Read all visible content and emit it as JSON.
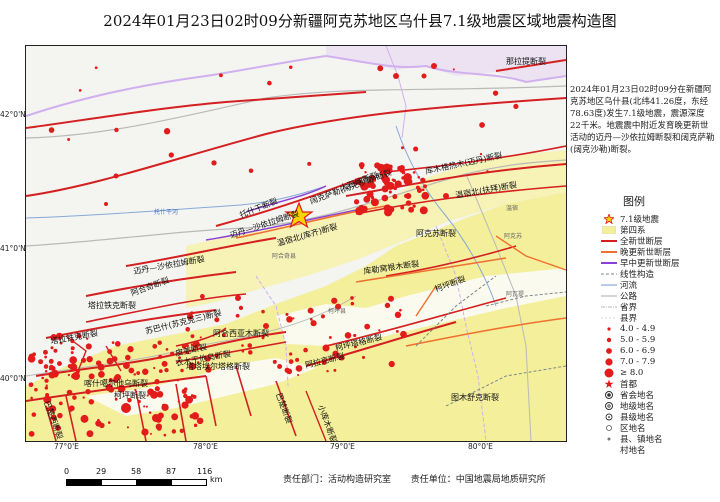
{
  "title": "2024年01月23日02时09分新疆阿克苏地区乌什县7.1级地震区域地震构造图",
  "map": {
    "colors": {
      "quaternary": "#f3ef9a",
      "holocene_fault": "#d42020",
      "late_pleistocene_fault": "#f07030",
      "early_mid_pleistocene_fault": "#8a3fd6",
      "boundary": "#d0b0ee",
      "highway": "#b9b9b9",
      "river": "#86a9d9",
      "epicenter": "#f5d400",
      "event": "#e21b1b"
    },
    "lat_ticks": [
      "42°0'N",
      "41°0'N",
      "40°0'N"
    ],
    "lon_ticks": [
      "77°0'E",
      "78°0'E",
      "79°0'E",
      "80°0'E"
    ],
    "fault_labels": [
      "那拉提断裂",
      "库木格热木(迈丹)断裂",
      "温宿北(扶拜)断裂",
      "阔克萨勒(阔克沙勒)断裂",
      "大石峡断裂",
      "托什干断裂",
      "迈丹—沙依拉姆断裂",
      "温宿北(库齐)断裂",
      "迈丹—沙依拉姆断裂",
      "阿合奇断裂",
      "塔拉铁克断裂",
      "库勒窝根木断裂",
      "柯坪断裂",
      "苏巴什(苏克克三)断裂",
      "塔拉铁克断裂",
      "皮羌断裂",
      "阿合西亚木断裂",
      "阿克苏断裂",
      "衣木干他乌断裂",
      "塔塔埃尔塔格断裂",
      "阿拉克断裂",
      "柯坪塔格断裂",
      "巴楚断裂",
      "小库木断裂",
      "图木舒克断裂",
      "喀什噶尔他乌断裂",
      "柯坪断裂",
      "巴楚西断裂"
    ],
    "place_labels": [
      "温宿",
      "阿克苏",
      "阿瓦提",
      "柯坪县",
      "阿合奇县"
    ],
    "river_label": "托什干河"
  },
  "side_note": "2024年01月23日02时09分在新疆阿克苏地区乌什县(北纬41.26度，东经78.63度)发生7.1级地震，震源深度22千米。地震震中附近发育晚更新世活动的迈丹—沙依拉姆断裂和阔克萨勒(阔克沙勒)断裂。",
  "legend": {
    "title": "图例",
    "items": [
      {
        "label": "7.1级地震",
        "icon": "star-icon"
      },
      {
        "label": "第四系",
        "icon": "quaternary-swatch"
      },
      {
        "label": "全新世断层",
        "icon": "holocene-line"
      },
      {
        "label": "晚更新世断层",
        "icon": "late-pleistocene-line"
      },
      {
        "label": "早中更新世断层",
        "icon": "early-pleistocene-line"
      },
      {
        "label": "线性构造",
        "icon": "lineament-line"
      },
      {
        "label": "河流",
        "icon": "river-line"
      },
      {
        "label": "公路",
        "icon": "highway-line"
      },
      {
        "label": "省界",
        "icon": "province-boundary-line"
      },
      {
        "label": "县界",
        "icon": "county-boundary-line"
      },
      {
        "label": "4.0 - 4.9",
        "icon": "dot-icon"
      },
      {
        "label": "5.0 - 5.9",
        "icon": "dot-icon"
      },
      {
        "label": "6.0 - 6.9",
        "icon": "dot-icon"
      },
      {
        "label": "7.0 - 7.9",
        "icon": "dot-icon"
      },
      {
        "label": "≥ 8.0",
        "icon": "dot-icon"
      },
      {
        "label": "首都",
        "icon": "capital-star-icon"
      },
      {
        "label": "省会地名",
        "icon": "provincial-capital-icon"
      },
      {
        "label": "地级地名",
        "icon": "prefecture-icon"
      },
      {
        "label": "县级地名",
        "icon": "county-icon"
      },
      {
        "label": "区地名",
        "icon": "district-icon"
      },
      {
        "label": "县、镇地名",
        "icon": "town-icon"
      },
      {
        "label": "村地名",
        "icon": "village-icon"
      }
    ]
  },
  "scale": {
    "ticks": [
      "0",
      "29",
      "58",
      "87",
      "116"
    ],
    "unit": "km"
  },
  "footer": {
    "dept": "责任部门：活动构造研究室",
    "unit": "责任单位：中国地震局地质研究所"
  }
}
